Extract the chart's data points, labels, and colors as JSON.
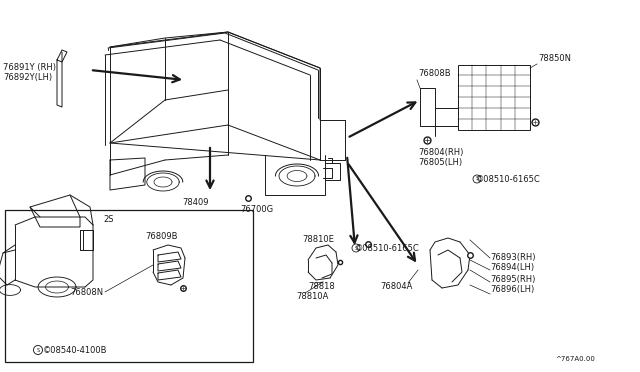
{
  "bg_color": "#ffffff",
  "fig_width": 6.4,
  "fig_height": 3.72,
  "dpi": 100,
  "diagram_ref": "^767A0.00",
  "lc": "#1a1a1a",
  "tc": "#1a1a1a",
  "fs": 6.0,
  "sfs": 5.0,
  "labels": {
    "76891Y_RH": "76891Y (RH)",
    "76892Y_LH": "76892Y(LH)",
    "76808B": "76808B",
    "78850N": "78850N",
    "76804_RH": "76804(RH)",
    "76805_LH": "76805(LH)",
    "08510_6165C_top": "©08510-6165C",
    "08510_6165C_bot": "©08510-6165C",
    "08540_4100B": "©08540-4100B",
    "76700G": "76700G",
    "78409": "78409",
    "76809B": "76809B",
    "76808N": "76808N",
    "78810E": "78810E",
    "78810A": "78810A",
    "78818": "78818",
    "76804A": "76804A",
    "76893_RH": "76893(RH)",
    "76894_LH": "76894(LH)",
    "76895_RH": "76895(RH)",
    "76896_LH": "76896(LH)",
    "2S": "2S"
  }
}
